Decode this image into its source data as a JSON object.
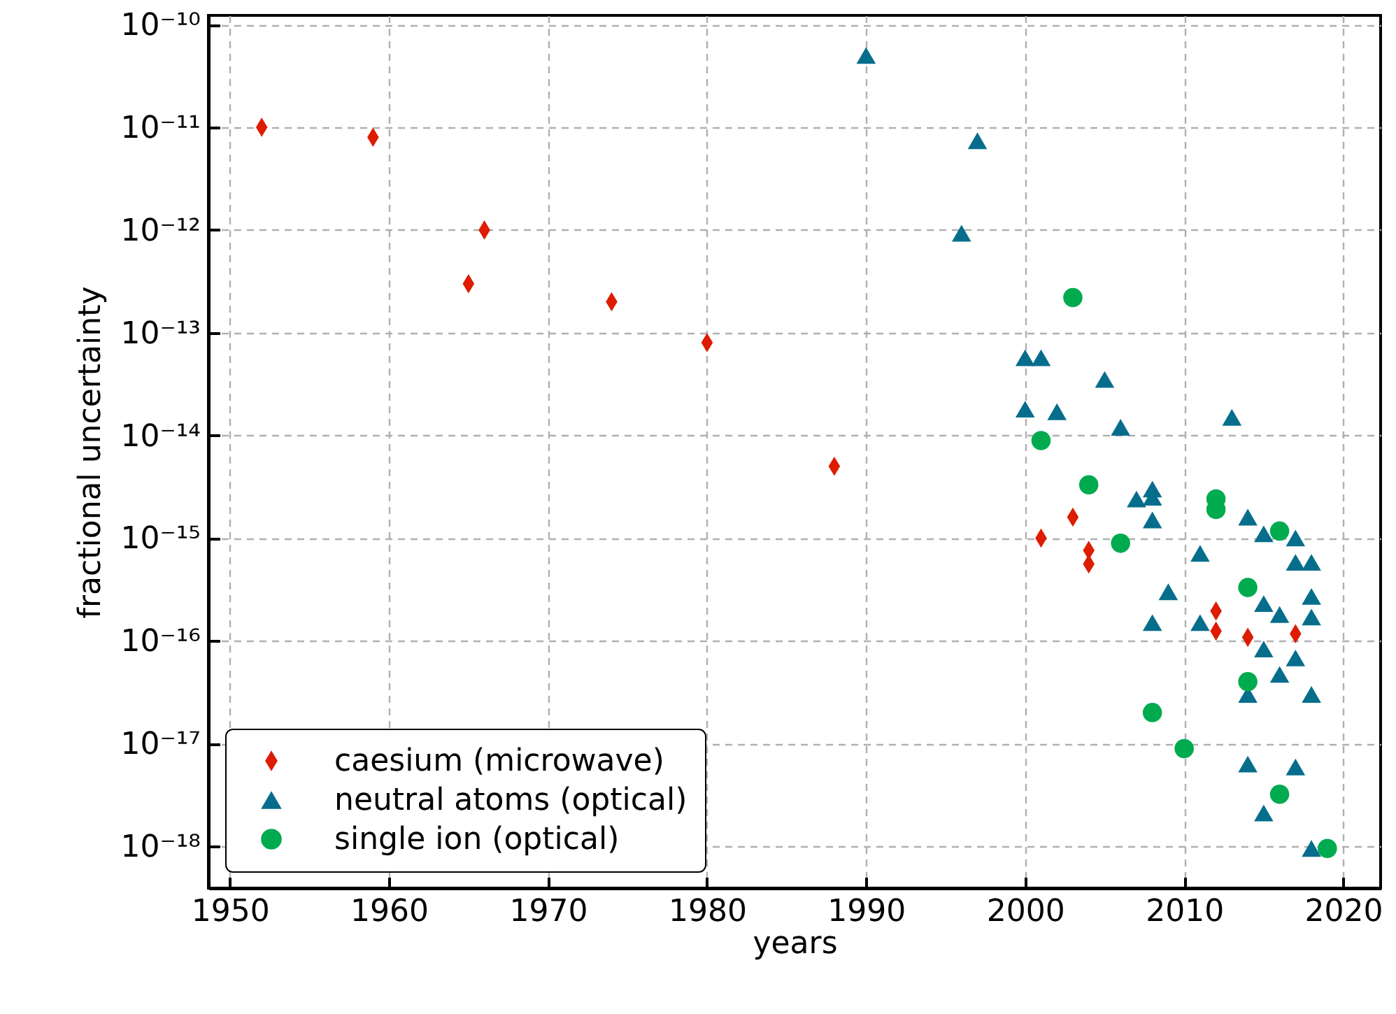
{
  "chart_data": {
    "type": "scatter",
    "xlabel": "years",
    "ylabel": "fractional uncertainty",
    "log": "y",
    "grid": true,
    "legend": "bottom left",
    "xlim": [
      1948.65,
      2022.35
    ],
    "xticks": [
      1950,
      1960,
      1970,
      1980,
      1990,
      2000,
      2010,
      2020
    ],
    "ylim": [
      3.9e-19,
      1.23e-10
    ],
    "yticks": [
      {
        "value": 1e-10,
        "label": "10⁻¹⁰"
      },
      {
        "value": 1e-11,
        "label": "10⁻¹¹"
      },
      {
        "value": 1e-12,
        "label": "10⁻¹²"
      },
      {
        "value": 1e-13,
        "label": "10⁻¹³"
      },
      {
        "value": 1e-14,
        "label": "10⁻¹⁴"
      },
      {
        "value": 1e-15,
        "label": "10⁻¹⁵"
      },
      {
        "value": 1e-16,
        "label": "10⁻¹⁶"
      },
      {
        "value": 1e-17,
        "label": "10⁻¹⁷"
      },
      {
        "value": 1e-18,
        "label": "10⁻¹⁸"
      }
    ],
    "series": [
      {
        "name": "caesium (microwave)",
        "color": "#dd1c00",
        "marker": "diamond",
        "x": [
          1952,
          1959,
          1965,
          1966,
          1974,
          1980,
          1988,
          2001,
          2003,
          2004,
          2004,
          2012,
          2012,
          2014,
          2017
        ],
        "values": [
          1e-11,
          8e-12,
          3e-13,
          1e-12,
          2e-13,
          8e-14,
          5e-15,
          1e-15,
          1.6e-15,
          7.6e-16,
          5.6e-16,
          1.95e-16,
          1.24e-16,
          1.08e-16,
          1.17e-16
        ]
      },
      {
        "name": "neutral atoms (optical)",
        "color": "#066e8c",
        "marker": "triangle",
        "x": [
          1990,
          1997,
          1996,
          2000,
          2001,
          2005,
          2000,
          2002,
          2006,
          2013,
          2007,
          2008,
          2008,
          2008,
          2008,
          2009,
          2011,
          2011,
          2014,
          2015,
          2017,
          2017,
          2018,
          2018,
          2018,
          2015,
          2016,
          2015,
          2017,
          2016,
          2014,
          2018,
          2014,
          2017,
          2015,
          2018
        ],
        "values": [
          5e-11,
          7.4e-12,
          9.3e-13,
          5.7e-14,
          5.7e-14,
          3.5e-14,
          1.8e-14,
          1.7e-14,
          1.2e-14,
          1.5e-14,
          2.4e-15,
          3e-15,
          2.5e-15,
          1.5e-15,
          1.5e-16,
          3e-16,
          7.1e-16,
          1.5e-16,
          1.6e-15,
          1.1e-15,
          1e-15,
          5.8e-16,
          5.8e-16,
          2.7e-16,
          1.7e-16,
          2.3e-16,
          1.8e-16,
          8.3e-17,
          6.8e-17,
          4.7e-17,
          3e-17,
          3e-17,
          6.3e-18,
          5.9e-18,
          2.1e-18,
          9.5e-19
        ]
      },
      {
        "name": "single ion (optical)",
        "color": "#00ab50",
        "marker": "circle",
        "x": [
          2003,
          2001,
          2004,
          2006,
          2012,
          2012,
          2016,
          2014,
          2014,
          2008,
          2010,
          2016,
          2019
        ],
        "values": [
          2.2e-13,
          8.9e-15,
          3.3e-15,
          8.9e-16,
          2.4e-15,
          1.9e-15,
          1.17e-15,
          3.3e-16,
          4e-17,
          2e-17,
          8.9e-18,
          3.2e-18,
          9.5e-19
        ]
      }
    ]
  }
}
